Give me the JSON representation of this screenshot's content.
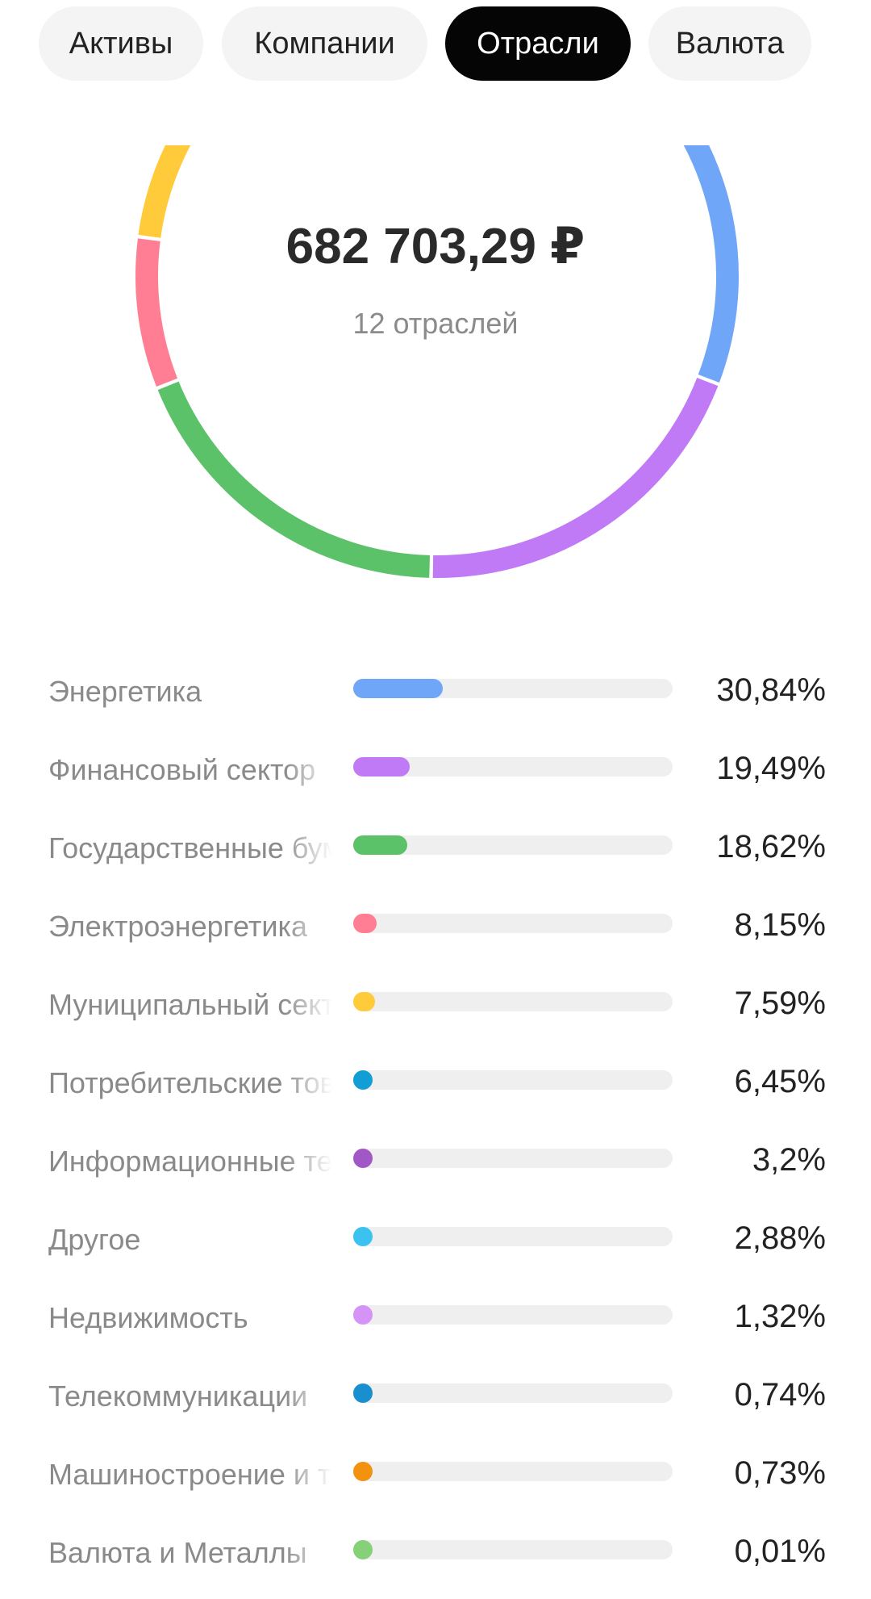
{
  "tabs": [
    {
      "label": "Активы",
      "active": false
    },
    {
      "label": "Компании",
      "active": false
    },
    {
      "label": "Отрасли",
      "active": true
    },
    {
      "label": "Валюта",
      "active": false
    }
  ],
  "summary": {
    "total": "682 703,29 ₽",
    "subtitle": "12 отраслей"
  },
  "chart_data": {
    "type": "pie",
    "categories": [
      "Энергетика",
      "Финансовый сектор",
      "Государственные бумаги",
      "Электроэнергетика",
      "Муниципальный сектор",
      "Потребительские товары",
      "Информационные технологии",
      "Другое",
      "Недвижимость",
      "Телекоммуникации",
      "Машиностроение и транспорт",
      "Валюта и Металлы"
    ],
    "values": [
      30.84,
      19.49,
      18.62,
      8.15,
      7.59,
      6.45,
      3.2,
      2.88,
      1.32,
      0.74,
      0.73,
      0.01
    ],
    "colors": [
      "#6fa6f7",
      "#c17af6",
      "#5cc26a",
      "#ff7e93",
      "#ffcb3a",
      "#119ed4",
      "#a257c6",
      "#3bc2f0",
      "#d593f8",
      "#1a8fd0",
      "#f2920f",
      "#86d177"
    ],
    "center_total": "682 703,29 ₽",
    "center_subtitle": "12 отраслей"
  },
  "sectors": [
    {
      "label": "Энергетика",
      "percent_text": "30,84%",
      "share": 30.84,
      "color": "#6fa6f7"
    },
    {
      "label": "Финансовый сектор",
      "percent_text": "19,49%",
      "share": 19.49,
      "color": "#c17af6"
    },
    {
      "label": "Государственные бумаги",
      "percent_text": "18,62%",
      "share": 18.62,
      "color": "#5cc26a"
    },
    {
      "label": "Электроэнергетика",
      "percent_text": "8,15%",
      "share": 8.15,
      "color": "#ff7e93"
    },
    {
      "label": "Муниципальный сектор",
      "percent_text": "7,59%",
      "share": 7.59,
      "color": "#ffcb3a"
    },
    {
      "label": "Потребительские товары",
      "percent_text": "6,45%",
      "share": 6.45,
      "color": "#119ed4"
    },
    {
      "label": "Информационные технологии",
      "percent_text": "3,2%",
      "share": 3.2,
      "color": "#a257c6"
    },
    {
      "label": "Другое",
      "percent_text": "2,88%",
      "share": 2.88,
      "color": "#3bc2f0"
    },
    {
      "label": "Недвижимость",
      "percent_text": "1,32%",
      "share": 1.32,
      "color": "#d593f8"
    },
    {
      "label": "Телекоммуникации",
      "percent_text": "0,74%",
      "share": 0.74,
      "color": "#1a8fd0"
    },
    {
      "label": "Машиностроение и транспорт",
      "percent_text": "0,73%",
      "share": 0.73,
      "color": "#f2920f"
    },
    {
      "label": "Валюта и Металлы",
      "percent_text": "0,01%",
      "share": 0.01,
      "color": "#86d177"
    }
  ]
}
